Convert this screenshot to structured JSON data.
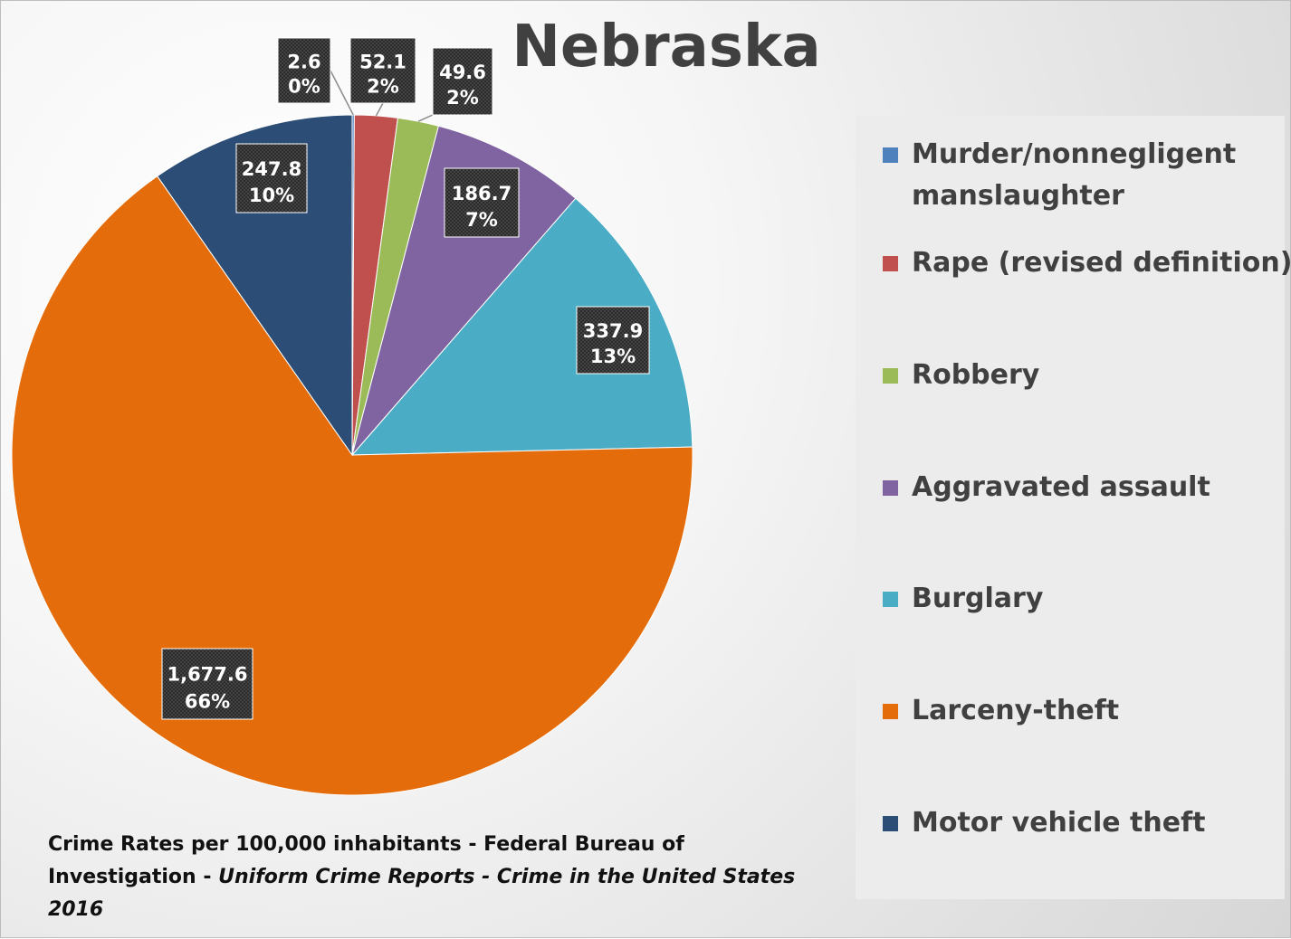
{
  "chart_data": {
    "type": "pie",
    "title": "Nebraska",
    "categories": [
      "Murder/nonnegligent manslaughter",
      "Rape (revised definition)",
      "Robbery",
      "Aggravated assault",
      "Burglary",
      "Larceny-theft",
      "Motor vehicle theft"
    ],
    "values": [
      2.6,
      52.1,
      49.6,
      186.7,
      337.9,
      1677.6,
      247.8
    ],
    "value_labels": [
      "2.6",
      "52.1",
      "49.6",
      "186.7",
      "337.9",
      "1,677.6",
      "247.8"
    ],
    "percent_labels": [
      "0%",
      "2%",
      "2%",
      "7%",
      "13%",
      "66%",
      "10%"
    ],
    "colors": [
      "#4f81bd",
      "#c0504d",
      "#9bbb59",
      "#8064a2",
      "#4bacc6",
      "#e46c0a",
      "#2c4d75"
    ],
    "legend_position": "right",
    "start_angle": "12 o'clock, clockwise"
  },
  "legend": {
    "items": [
      {
        "line1": "Murder/nonnegligent",
        "line2": "manslaughter"
      },
      {
        "line1": "Rape (revised definition)",
        "line2": ""
      },
      {
        "line1": "Robbery",
        "line2": ""
      },
      {
        "line1": "Aggravated assault",
        "line2": ""
      },
      {
        "line1": "Burglary",
        "line2": ""
      },
      {
        "line1": "Larceny-theft",
        "line2": ""
      },
      {
        "line1": "Motor vehicle theft",
        "line2": ""
      }
    ]
  },
  "source": {
    "part1": "Crime Rates per 100,000 inhabitants - Federal Bureau of Investigation - ",
    "part2": "Uniform Crime Reports - Crime in the United States 2016"
  }
}
